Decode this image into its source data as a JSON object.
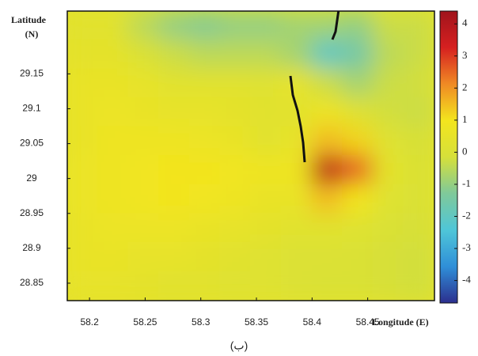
{
  "chart_data": {
    "type": "heatmap",
    "y_label": "Latitude",
    "y_unit": "(N)",
    "x_label": "Longitude (E)",
    "caption": "(ب)",
    "xlim": [
      58.18,
      58.51
    ],
    "xticks": [
      58.2,
      58.25,
      58.3,
      58.35,
      58.4,
      58.45
    ],
    "ylim": [
      28.825,
      29.24
    ],
    "yticks": [
      29.15,
      29.1,
      29.05,
      29,
      28.95,
      28.9,
      28.85
    ],
    "zlim": [
      -4.7,
      4.4
    ],
    "zticks": [
      4,
      3,
      2,
      1,
      0,
      -1,
      -2,
      -3,
      -4
    ],
    "colormap": [
      "#2c2f8e",
      "#2f8fd8",
      "#4fc6d8",
      "#7fc99a",
      "#d6e03a",
      "#f3e51e",
      "#f08a24",
      "#d62020",
      "#a0141c"
    ],
    "z": [
      [
        0.3,
        0.3,
        -0.5,
        -1,
        -1.2,
        -1,
        -1,
        -0.8,
        -0.8,
        -1,
        -0.3,
        -0.3
      ],
      [
        0.4,
        0.4,
        0,
        -0.3,
        -0.5,
        -0.5,
        -0.5,
        -0.8,
        -2,
        -1.5,
        -0.5,
        -0.3
      ],
      [
        0.6,
        0.6,
        0.5,
        0.3,
        0.3,
        0.3,
        0.2,
        0.5,
        -0.3,
        -0.8,
        -0.3,
        -0.2
      ],
      [
        0.6,
        0.7,
        0.6,
        0.5,
        0.5,
        0.4,
        0.3,
        0.3,
        0.8,
        0.2,
        -0.2,
        -0.3
      ],
      [
        0.6,
        0.8,
        0.8,
        0.8,
        0.7,
        0.6,
        0.3,
        0.5,
        1.5,
        1.2,
        0.2,
        -0.1
      ],
      [
        0.7,
        0.8,
        0.9,
        1,
        1,
        0.9,
        0.8,
        0.8,
        3.8,
        2.5,
        0.4,
        0
      ],
      [
        0.7,
        0.8,
        0.9,
        1,
        0.9,
        0.8,
        0.6,
        0.6,
        1.5,
        1,
        0.2,
        0
      ],
      [
        0.6,
        0.7,
        0.7,
        0.7,
        0.6,
        0.5,
        0.4,
        0.3,
        0.3,
        0.2,
        0,
        -0.1
      ],
      [
        0.6,
        0.6,
        0.5,
        0.5,
        0.4,
        0.3,
        0.2,
        0.1,
        0.1,
        0,
        -0.1,
        -0.2
      ],
      [
        0.5,
        0.5,
        0.4,
        0.3,
        0.3,
        0.2,
        0.2,
        0.1,
        0,
        0,
        -0.1,
        -0.2
      ]
    ]
  }
}
